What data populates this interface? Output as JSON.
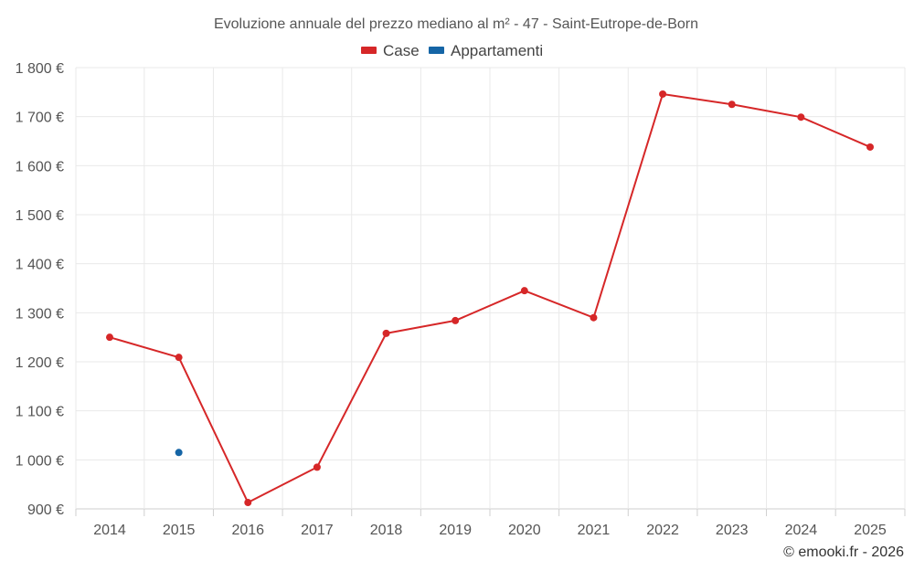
{
  "chart_data": {
    "type": "line",
    "title": "Evoluzione annuale del prezzo mediano al m² - 47 - Saint-Eutrope-de-Born",
    "categories": [
      "2014",
      "2015",
      "2016",
      "2017",
      "2018",
      "2019",
      "2020",
      "2021",
      "2022",
      "2023",
      "2024",
      "2025"
    ],
    "ylim": [
      900,
      1800
    ],
    "yticks": [
      900,
      1000,
      1100,
      1200,
      1300,
      1400,
      1500,
      1600,
      1700,
      1800
    ],
    "ytick_labels": [
      "900 €",
      "1 000 €",
      "1 100 €",
      "1 200 €",
      "1 300 €",
      "1 400 €",
      "1 500 €",
      "1 600 €",
      "1 700 €",
      "1 800 €"
    ],
    "legend_position": "top-center",
    "grid": true,
    "series": [
      {
        "name": "Case",
        "color": "#d62728",
        "values": [
          1250,
          1209,
          913,
          985,
          1258,
          1284,
          1345,
          1290,
          1746,
          1725,
          1699,
          1638
        ]
      },
      {
        "name": "Appartamenti",
        "color": "#1565a6",
        "values": [
          null,
          1015,
          null,
          null,
          null,
          null,
          null,
          null,
          null,
          null,
          null,
          null
        ]
      }
    ]
  },
  "credit": "© emooki.fr - 2026"
}
